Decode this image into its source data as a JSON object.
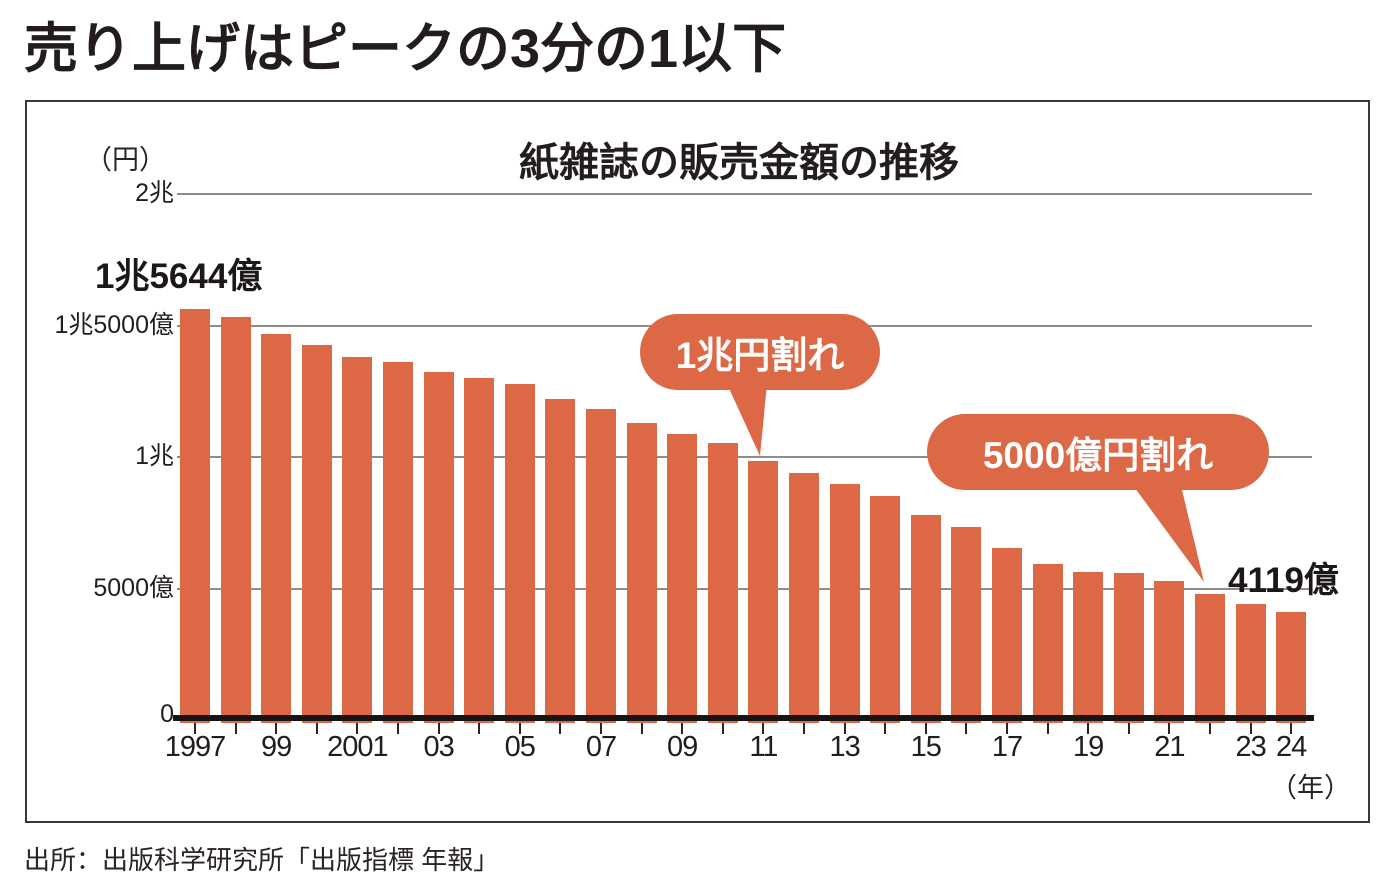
{
  "page": {
    "title": "売り上げはピークの3分の1以下",
    "source": "出所：出版科学研究所「出版指標 年報」"
  },
  "chart_data": {
    "type": "bar",
    "title": "紙雑誌の販売金額の推移",
    "y_unit_label": "（円）",
    "x_unit_label": "（年）",
    "value_unit": "億円",
    "categories": [
      1997,
      1998,
      1999,
      2000,
      2001,
      2002,
      2003,
      2004,
      2005,
      2006,
      2007,
      2008,
      2009,
      2010,
      2011,
      2012,
      2013,
      2014,
      2015,
      2016,
      2017,
      2018,
      2019,
      2020,
      2021,
      2022,
      2023,
      2024
    ],
    "values": [
      15644,
      15315,
      14672,
      14261,
      13794,
      13616,
      13222,
      12998,
      12767,
      12200,
      11827,
      11299,
      10864,
      10536,
      9844,
      9385,
      8972,
      8520,
      7801,
      7339,
      6548,
      5930,
      5637,
      5576,
      5276,
      4795,
      4418,
      4119
    ],
    "ylim": [
      0,
      20000
    ],
    "grid": true,
    "legend_position": "none",
    "bar_color": "#dc6845",
    "yticks": [
      {
        "value": 0,
        "label": "0"
      },
      {
        "value": 5000,
        "label": "5000億"
      },
      {
        "value": 10000,
        "label": "1兆"
      },
      {
        "value": 15000,
        "label": "1兆5000億"
      },
      {
        "value": 20000,
        "label": "2兆"
      }
    ],
    "xticks": [
      {
        "index": 0,
        "label": "1997"
      },
      {
        "index": 2,
        "label": "99"
      },
      {
        "index": 4,
        "label": "2001"
      },
      {
        "index": 6,
        "label": "03"
      },
      {
        "index": 8,
        "label": "05"
      },
      {
        "index": 10,
        "label": "07"
      },
      {
        "index": 12,
        "label": "09"
      },
      {
        "index": 14,
        "label": "11"
      },
      {
        "index": 16,
        "label": "13"
      },
      {
        "index": 18,
        "label": "15"
      },
      {
        "index": 20,
        "label": "17"
      },
      {
        "index": 22,
        "label": "19"
      },
      {
        "index": 24,
        "label": "21"
      },
      {
        "index": 26,
        "label": "23"
      },
      {
        "index": 27,
        "label": "24"
      }
    ],
    "annotations": {
      "peak_label": "1兆5644億",
      "latest_label": "4119億",
      "callouts": [
        {
          "text": "1兆円割れ",
          "target_year": 2011
        },
        {
          "text": "5000億円割れ",
          "target_year": 2022
        }
      ]
    }
  }
}
